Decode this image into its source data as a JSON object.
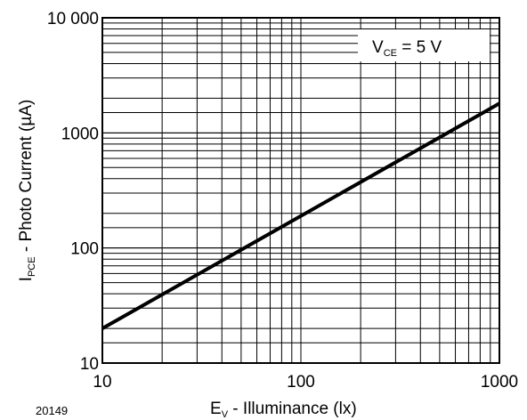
{
  "chart_data": {
    "type": "line",
    "x_scale": "log",
    "y_scale": "log",
    "xlim": [
      10,
      1000
    ],
    "ylim": [
      10,
      10000
    ],
    "grid": true,
    "x_ticks": [
      {
        "value": 10,
        "label": "10"
      },
      {
        "value": 100,
        "label": "100"
      },
      {
        "value": 1000,
        "label": "1000"
      }
    ],
    "y_ticks": [
      {
        "value": 10,
        "label": "10"
      },
      {
        "value": 100,
        "label": "100"
      },
      {
        "value": 1000,
        "label": "1000"
      },
      {
        "value": 10000,
        "label": "10 000"
      }
    ],
    "xlabel": {
      "main": "E",
      "sub": "V",
      "rest": "  - Illuminance (lx)"
    },
    "ylabel": {
      "main": "I",
      "sub": "PCE",
      "rest": " - Photo Current (µA)"
    },
    "annotation": {
      "main": "V",
      "sub": "CE",
      "rest": " = 5 V"
    },
    "figure_id": "20149",
    "series": [
      {
        "x": [
          10,
          1000
        ],
        "y": [
          20,
          1800
        ]
      }
    ]
  }
}
